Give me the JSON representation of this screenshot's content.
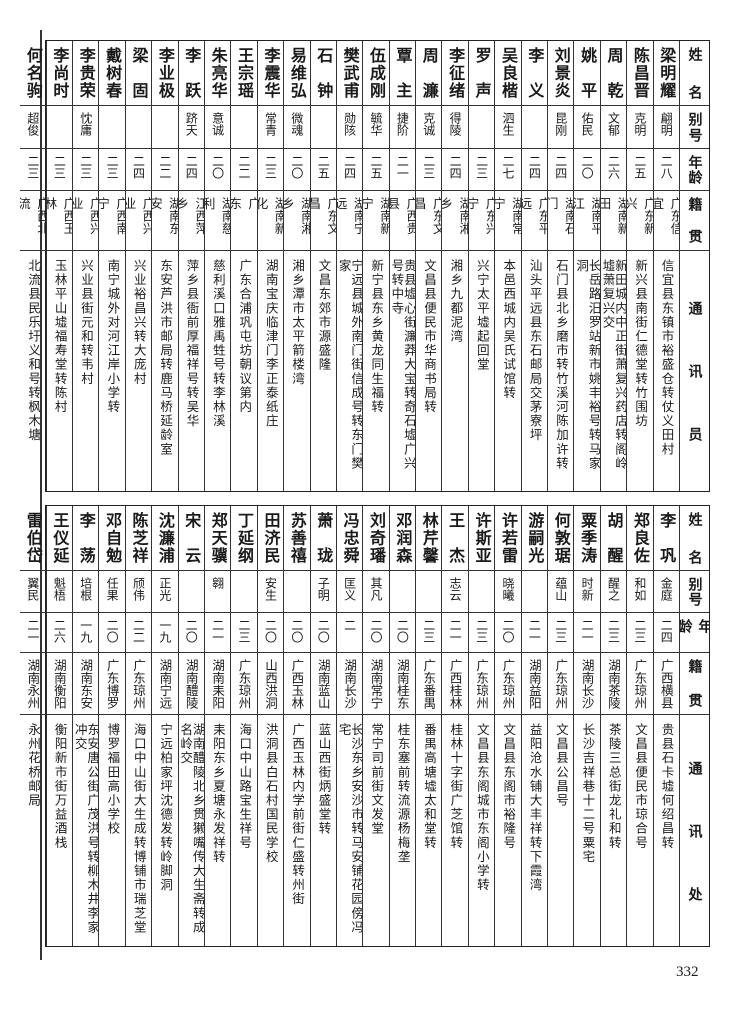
{
  "top_table": {
    "headers": {
      "name": "姓名",
      "alias": "别号",
      "age": "年龄",
      "origin": "籍贯",
      "address": "通讯员"
    },
    "rows": [
      {
        "name": "梁明耀",
        "alias": "翩明",
        "age": "二八",
        "origin": "广东信宜",
        "address": "信宜县东镇市裕盛仓转仗义田村"
      },
      {
        "name": "陈昌晋",
        "alias": "克明",
        "age": "二五",
        "origin": "广东新兴",
        "address": "新兴县南街仁德堂转竹围坊"
      },
      {
        "name": "周乾",
        "alias": "文郁",
        "age": "二六",
        "origin": "湖南新田",
        "address": "新田城内中正街萧复兴药店转阁岭墟萧复兴交"
      },
      {
        "name": "姚平",
        "alias": "佑民",
        "age": "二〇",
        "origin": "湖南平江",
        "address": "长岳路汨罗站新市姚丰裕号转马家洞"
      },
      {
        "name": "刘景炎",
        "alias": "昆刚",
        "age": "二四",
        "origin": "湖南石门",
        "address": "石门县北乡磨市转竹溪河陈加许转"
      },
      {
        "name": "李义",
        "alias": "",
        "age": "二四",
        "origin": "广东平远",
        "address": "汕头平远县东石邮局交茅寮坪"
      },
      {
        "name": "吴良楷",
        "alias": "泗生",
        "age": "二七",
        "origin": "湖南常宁",
        "address": "本邑西城内吴氏试馆转"
      },
      {
        "name": "罗声",
        "alias": "",
        "age": "二三",
        "origin": "广东兴宁",
        "address": "兴宁太平墟起回堂"
      },
      {
        "name": "李征绪",
        "alias": "得陵",
        "age": "二四",
        "origin": "湖南湘乡",
        "address": "湘乡九都泥湾"
      },
      {
        "name": "周濂",
        "alias": "克诚",
        "age": "二三",
        "origin": "广东文昌",
        "address": "文昌县便民市华商书局转"
      },
      {
        "name": "覃主",
        "alias": "捷阶",
        "age": "二一",
        "origin": "广西贵县",
        "address": "贵县墟心街濂莽大宝转奇石墟广兴号转中寺"
      },
      {
        "name": "伍成刚",
        "alias": "毓华",
        "age": "二五",
        "origin": "湖南新宁",
        "address": "新宁县东乡黄龙同生福转"
      },
      {
        "name": "樊武甫",
        "alias": "勋陔",
        "age": "二四",
        "origin": "湖南宁远",
        "address": "宁远县城外南门街信成号转东门樊家"
      },
      {
        "name": "石钟",
        "alias": "",
        "age": "二五",
        "origin": "广东文昌",
        "address": "文昌东郊市源盛隆"
      },
      {
        "name": "易维弘",
        "alias": "微魂",
        "age": "二〇",
        "origin": "湖南湘乡",
        "address": "湘乡潭市太平箭楼湾"
      },
      {
        "name": "李震华",
        "alias": "常青",
        "age": "二三",
        "origin": "湖南新化",
        "address": "湖南宝庆临津门李正泰纸庄"
      },
      {
        "name": "王宗瑶",
        "alias": "",
        "age": "二二",
        "origin": "广　　东",
        "address": "广东合浦巩屯坊朝议第内"
      },
      {
        "name": "朱亮华",
        "alias": "意诚",
        "age": "二〇",
        "origin": "湖南慈利",
        "address": "慈利溪口雅禹甡号转李林溪"
      },
      {
        "name": "李跃",
        "alias": "跻天",
        "age": "二四",
        "origin": "江西萍乡",
        "address": "萍乡县衙前厚福祥号转吴华"
      },
      {
        "name": "李业极",
        "alias": "",
        "age": "二二",
        "origin": "湖南东安",
        "address": "东安芦洪市邮局转鹿马桥延龄室"
      },
      {
        "name": "梁固",
        "alias": "",
        "age": "二四",
        "origin": "广西兴业",
        "address": "兴业裕昌兴转大庞村"
      },
      {
        "name": "戴树春",
        "alias": "",
        "age": "二三",
        "origin": "广西南宁",
        "address": "南宁城外对河江岸小学转"
      },
      {
        "name": "李贵荣",
        "alias": "忱庸",
        "age": "二三",
        "origin": "广西兴业",
        "address": "兴业县街元和转韦村"
      },
      {
        "name": "李尚时",
        "alias": "",
        "age": "二三",
        "origin": "广西玉林",
        "address": "玉林平山墟福寿堂转陈村"
      },
      {
        "name": "何名驹",
        "alias": "超俊",
        "age": "二三",
        "origin": "广西北流",
        "address": "北流县民乐圩义和号转枫木塘"
      }
    ]
  },
  "bottom_table": {
    "headers": {
      "name": "姓名",
      "alias": "别号",
      "age": "年龄",
      "origin": "籍贯",
      "address": "通讯处"
    },
    "rows": [
      {
        "name": "李巩",
        "alias": "金庭",
        "age": "二四",
        "origin": "广西横县",
        "address": "贵县石卡墟何绍昌转"
      },
      {
        "name": "郑良佐",
        "alias": "和如",
        "age": "二三",
        "origin": "广东琼州",
        "address": "文昌县便民市琼合号"
      },
      {
        "name": "胡醒",
        "alias": "醒之",
        "age": "二三",
        "origin": "湖南茶陵",
        "address": "茶陵三总街龙礼和转"
      },
      {
        "name": "粟季涛",
        "alias": "时新",
        "age": "二一",
        "origin": "湖南长沙",
        "address": "长沙吉祥巷十二号粟宅"
      },
      {
        "name": "何敦琚",
        "alias": "蕴山",
        "age": "二三",
        "origin": "广东琼州",
        "address": "文昌县公昌号"
      },
      {
        "name": "游嗣光",
        "alias": "",
        "age": "二一",
        "origin": "湖南益阳",
        "address": "益阳沧水铺大丰祥转下霞湾"
      },
      {
        "name": "许若雷",
        "alias": "晓曦",
        "age": "二〇",
        "origin": "广东琼州",
        "address": "文昌县东阁市裕隆号"
      },
      {
        "name": "许斯亚",
        "alias": "",
        "age": "二三",
        "origin": "广东琼州",
        "address": "文昌县东阁城市东阁小学转"
      },
      {
        "name": "王杰",
        "alias": "志云",
        "age": "二一",
        "origin": "广西桂林",
        "address": "桂林十字街广芝馆转"
      },
      {
        "name": "林芹馨",
        "alias": "",
        "age": "二三",
        "origin": "广东番禺",
        "address": "番禺高塘墟太和堂转"
      },
      {
        "name": "邓润森",
        "alias": "",
        "age": "二〇",
        "origin": "湖南桂东",
        "address": "桂东塞前转流源杨梅垄"
      },
      {
        "name": "刘奇璠",
        "alias": "其凡",
        "age": "二〇",
        "origin": "湖南常宁",
        "address": "常宁司前街文发堂"
      },
      {
        "name": "冯忠舜",
        "alias": "匡义",
        "age": "二",
        "origin": "湖南长沙",
        "address": "长沙东乡安沙市转马安铺花园傍冯宅"
      },
      {
        "name": "萧珑",
        "alias": "子明",
        "age": "二〇",
        "origin": "湖南蓝山",
        "address": "蓝山西街炳盛堂转"
      },
      {
        "name": "苏善禧",
        "alias": "",
        "age": "二〇",
        "origin": "广西玉林",
        "address": "广西玉林内学前街仁盛转州街"
      },
      {
        "name": "田济民",
        "alias": "安生",
        "age": "二〇",
        "origin": "山西洪洞",
        "address": "洪洞县白石村国民学校"
      },
      {
        "name": "丁延纲",
        "alias": "",
        "age": "二三",
        "origin": "广东琼州",
        "address": "海口中山路宝生祥号"
      },
      {
        "name": "郑天骥",
        "alias": "翱",
        "age": "二一",
        "origin": "湖南耒阳",
        "address": "耒阳东乡夏塘永发祥转"
      },
      {
        "name": "宋云",
        "alias": "",
        "age": "二〇",
        "origin": "湖南醴陵",
        "address": "湖南醴陵北乡贯獭嘴传大生斋转成名岭交"
      },
      {
        "name": "沈濂浦",
        "alias": "正光",
        "age": "一九",
        "origin": "湖南宁远",
        "address": "宁远柏家坪沈德发转岭脚洞"
      },
      {
        "name": "陈芝祥",
        "alias": "颀伟",
        "age": "二二",
        "origin": "广东琼州",
        "address": "海口中山街大生成转博铺市瑞芝堂"
      },
      {
        "name": "邓自勉",
        "alias": "任果",
        "age": "二〇",
        "origin": "广东博罗",
        "address": "博罗福田高小学校"
      },
      {
        "name": "李荡",
        "alias": "培根",
        "age": "一九",
        "origin": "湖南东安",
        "address": "东安唐公街广茂洪号转柳木井李家冲交"
      },
      {
        "name": "王仪延",
        "alias": "魁梧",
        "age": "二六",
        "origin": "湖南衡阳",
        "address": "衡阳新市街万益酒栈"
      },
      {
        "name": "雷伯岱",
        "alias": "翼民",
        "age": "二一",
        "origin": "湖南永州",
        "address": "永州花桥邮局"
      }
    ]
  },
  "page_number": "332"
}
